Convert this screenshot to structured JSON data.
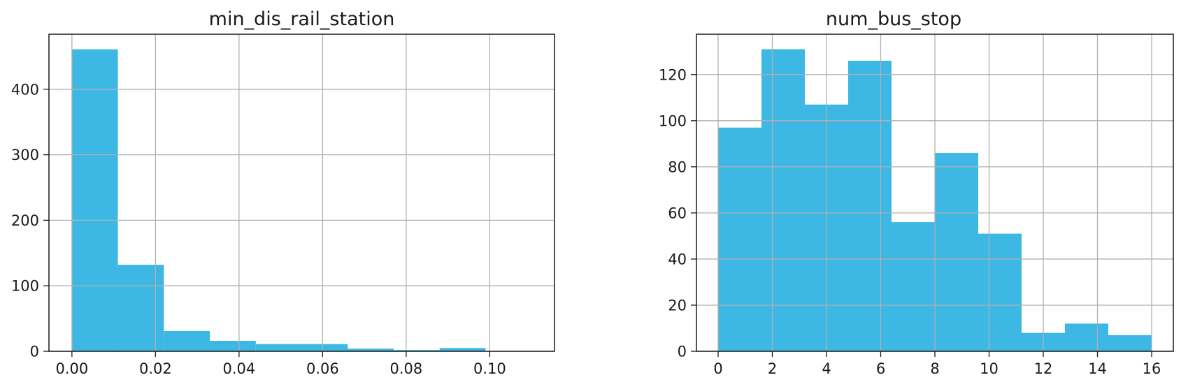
{
  "chart_data": [
    {
      "type": "bar",
      "subtype": "histogram",
      "title": "min_dis_rail_station",
      "color": "#3db7e4",
      "grid": true,
      "bins": [
        [
          0.0,
          0.011,
          461
        ],
        [
          0.011,
          0.022,
          132
        ],
        [
          0.022,
          0.033,
          31
        ],
        [
          0.033,
          0.044,
          16
        ],
        [
          0.044,
          0.055,
          11
        ],
        [
          0.055,
          0.066,
          11
        ],
        [
          0.066,
          0.077,
          4
        ],
        [
          0.077,
          0.088,
          2
        ],
        [
          0.088,
          0.099,
          5
        ],
        [
          0.099,
          0.11,
          0
        ]
      ],
      "xlim": [
        -0.0055,
        0.1155
      ],
      "ylim": [
        0,
        484
      ],
      "xticks": [
        0.0,
        0.02,
        0.04,
        0.06,
        0.08,
        0.1
      ],
      "xtick_labels": [
        "0.00",
        "0.02",
        "0.04",
        "0.06",
        "0.08",
        "0.10"
      ],
      "yticks": [
        0,
        100,
        200,
        300,
        400
      ],
      "ytick_labels": [
        "0",
        "100",
        "200",
        "300",
        "400"
      ]
    },
    {
      "type": "bar",
      "subtype": "histogram",
      "title": "num_bus_stop",
      "color": "#3db7e4",
      "grid": true,
      "bins": [
        [
          0,
          1.6,
          97
        ],
        [
          1.6,
          3.2,
          131
        ],
        [
          3.2,
          4.8,
          107
        ],
        [
          4.8,
          6.4,
          126
        ],
        [
          6.4,
          8.0,
          56
        ],
        [
          8.0,
          9.6,
          86
        ],
        [
          9.6,
          11.2,
          51
        ],
        [
          11.2,
          12.8,
          8
        ],
        [
          12.8,
          14.4,
          12
        ],
        [
          14.4,
          16.0,
          7
        ]
      ],
      "xlim": [
        -0.8,
        16.8
      ],
      "ylim": [
        0,
        137.5
      ],
      "xticks": [
        0,
        2,
        4,
        6,
        8,
        10,
        12,
        14,
        16
      ],
      "xtick_labels": [
        "0",
        "2",
        "4",
        "6",
        "8",
        "10",
        "12",
        "14",
        "16"
      ],
      "yticks": [
        0,
        20,
        40,
        60,
        80,
        100,
        120
      ],
      "ytick_labels": [
        "0",
        "20",
        "40",
        "60",
        "80",
        "100",
        "120"
      ]
    }
  ]
}
